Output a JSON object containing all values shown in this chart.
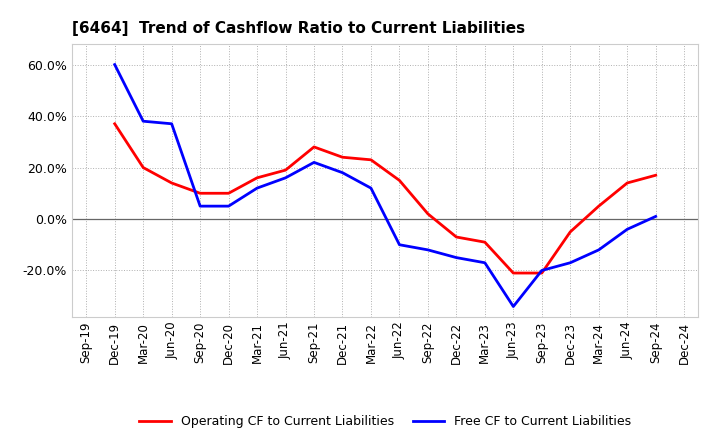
{
  "title": "[6464]  Trend of Cashflow Ratio to Current Liabilities",
  "x_labels": [
    "Sep-19",
    "Dec-19",
    "Mar-20",
    "Jun-20",
    "Sep-20",
    "Dec-20",
    "Mar-21",
    "Jun-21",
    "Sep-21",
    "Dec-21",
    "Mar-22",
    "Jun-22",
    "Sep-22",
    "Dec-22",
    "Mar-23",
    "Jun-23",
    "Sep-23",
    "Dec-23",
    "Mar-24",
    "Jun-24",
    "Sep-24",
    "Dec-24"
  ],
  "operating_cf": [
    null,
    0.37,
    0.2,
    0.14,
    0.1,
    0.1,
    0.16,
    0.19,
    0.28,
    0.24,
    0.23,
    0.15,
    0.02,
    -0.07,
    -0.09,
    -0.21,
    -0.21,
    -0.05,
    0.05,
    0.14,
    0.17,
    null
  ],
  "free_cf": [
    null,
    0.6,
    0.38,
    0.37,
    0.05,
    0.05,
    0.12,
    0.16,
    0.22,
    0.18,
    0.12,
    -0.1,
    -0.12,
    -0.15,
    -0.17,
    -0.34,
    -0.2,
    -0.17,
    -0.12,
    -0.04,
    0.01,
    null
  ],
  "ylim": [
    -0.38,
    0.68
  ],
  "yticks": [
    -0.2,
    0.0,
    0.2,
    0.4,
    0.6
  ],
  "operating_color": "#ff0000",
  "free_color": "#0000ff",
  "background_color": "#ffffff",
  "grid_color": "#b0b0b0",
  "line_width": 2.0,
  "legend_labels": [
    "Operating CF to Current Liabilities",
    "Free CF to Current Liabilities"
  ]
}
